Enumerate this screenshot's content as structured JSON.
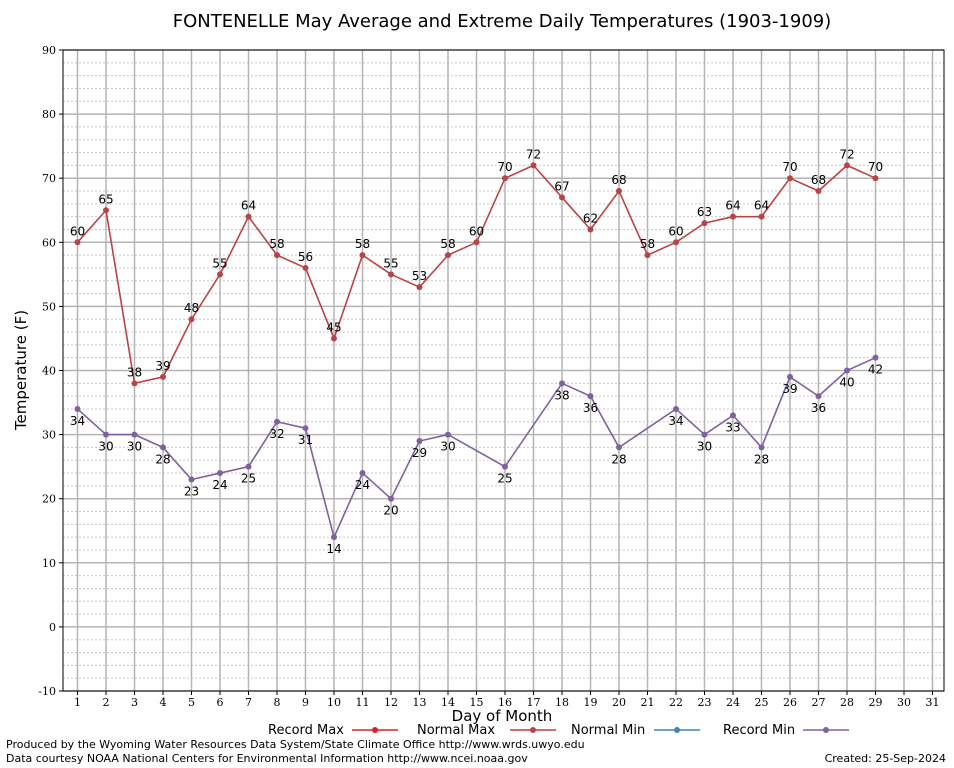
{
  "chart_data": {
    "type": "line",
    "title": "FONTENELLE May Average and Extreme Daily Temperatures (1903-1909)",
    "xlabel": "Day of Month",
    "ylabel": "Temperature (F)",
    "ylim": [
      -10,
      90
    ],
    "xlim": [
      1,
      31
    ],
    "yticks": [
      -10,
      0,
      10,
      20,
      30,
      40,
      50,
      60,
      70,
      80,
      90
    ],
    "xticks": [
      1,
      2,
      3,
      4,
      5,
      6,
      7,
      8,
      9,
      10,
      11,
      12,
      13,
      14,
      15,
      16,
      17,
      18,
      19,
      20,
      21,
      22,
      23,
      24,
      25,
      26,
      27,
      28,
      29,
      30,
      31
    ],
    "grid": true,
    "legend_position": "bottom",
    "legend": [
      {
        "name": "Record Max",
        "color": "#dd2222"
      },
      {
        "name": "Normal Max",
        "color": "#b84444"
      },
      {
        "name": "Normal Min",
        "color": "#4682b4"
      },
      {
        "name": "Record Min",
        "color": "#8060a0"
      }
    ],
    "series": [
      {
        "name": "Normal Max",
        "color": "#b84444",
        "x": [
          1,
          2,
          3,
          4,
          5,
          6,
          7,
          8,
          9,
          10,
          11,
          12,
          13,
          14,
          15,
          16,
          17,
          18,
          19,
          20,
          21,
          22,
          23,
          24,
          25,
          26,
          27,
          28,
          29
        ],
        "values": [
          60,
          65,
          38,
          39,
          48,
          55,
          64,
          58,
          56,
          45,
          58,
          55,
          53,
          58,
          60,
          70,
          72,
          67,
          62,
          68,
          58,
          60,
          63,
          64,
          64,
          70,
          68,
          72,
          70
        ]
      },
      {
        "name": "Record Min",
        "color": "#8060a0",
        "x": [
          1,
          2,
          3,
          4,
          5,
          6,
          7,
          8,
          9,
          10,
          11,
          12,
          13,
          14,
          16,
          18,
          19,
          20,
          22,
          23,
          24,
          25,
          26,
          27,
          28,
          29
        ],
        "values": [
          34,
          30,
          30,
          28,
          23,
          24,
          25,
          32,
          31,
          14,
          24,
          20,
          29,
          30,
          25,
          38,
          36,
          28,
          34,
          30,
          33,
          28,
          39,
          36,
          40,
          42
        ]
      }
    ]
  },
  "footer": {
    "line1": "Produced by the Wyoming Water Resources Data System/State Climate Office http://www.wrds.uwyo.edu",
    "line2": "Data courtesy NOAA National Centers for Environmental Information http://www.ncei.noaa.gov",
    "created": "Created:  25-Sep-2024"
  }
}
